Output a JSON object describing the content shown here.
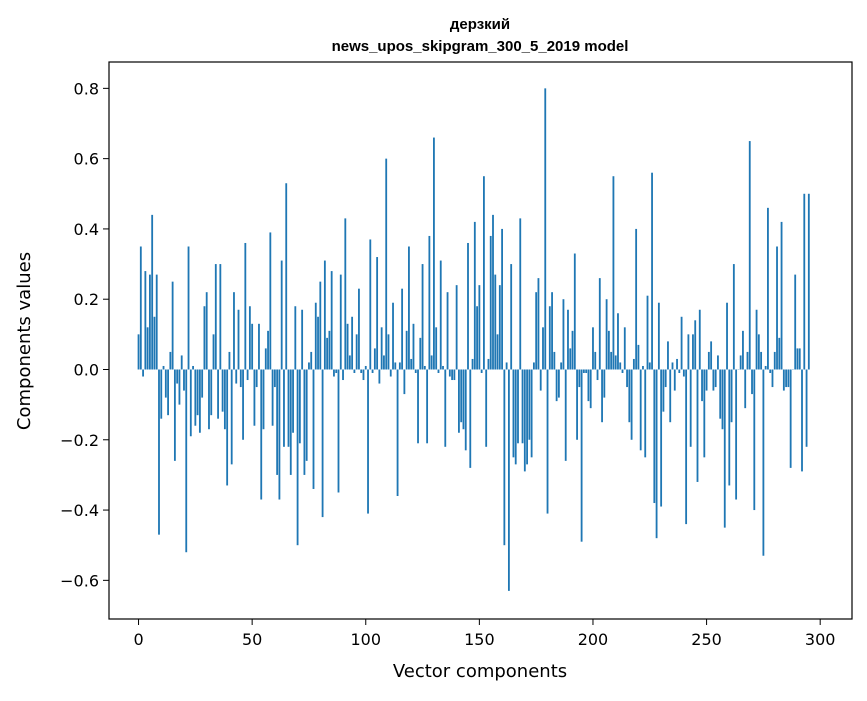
{
  "chart_data": {
    "type": "bar",
    "title_line1": "дерзкий",
    "title_line2": "news_upos_skipgram_300_5_2019 model",
    "xlabel": "Vector components",
    "ylabel": "Components values",
    "xlim": [
      -13,
      314
    ],
    "ylim": [
      -0.71,
      0.875
    ],
    "xticks": [
      0,
      50,
      100,
      150,
      200,
      250,
      300
    ],
    "xtick_labels": [
      "0",
      "50",
      "100",
      "150",
      "200",
      "250",
      "300"
    ],
    "yticks": [
      -0.6,
      -0.4,
      -0.2,
      0.0,
      0.2,
      0.4,
      0.6,
      0.8
    ],
    "ytick_labels": [
      "−0.6",
      "−0.4",
      "−0.2",
      "0.0",
      "0.2",
      "0.4",
      "0.6",
      "0.8"
    ],
    "grid": false,
    "bar_color": "#1f77b4",
    "values": [
      0.1,
      0.35,
      -0.02,
      0.28,
      0.12,
      0.27,
      0.44,
      0.15,
      0.27,
      -0.47,
      -0.14,
      0.01,
      -0.08,
      -0.13,
      0.05,
      0.25,
      -0.26,
      -0.04,
      -0.1,
      0.04,
      -0.06,
      -0.52,
      0.35,
      -0.19,
      0.01,
      -0.16,
      -0.13,
      -0.18,
      -0.08,
      0.18,
      0.22,
      -0.17,
      -0.13,
      0.1,
      0.3,
      -0.14,
      0.3,
      -0.12,
      -0.17,
      -0.33,
      0.05,
      -0.27,
      0.22,
      -0.04,
      0.17,
      -0.05,
      -0.2,
      0.36,
      -0.03,
      0.18,
      0.13,
      -0.16,
      -0.05,
      0.13,
      -0.37,
      -0.17,
      0.06,
      0.11,
      0.39,
      -0.16,
      -0.05,
      -0.3,
      -0.37,
      0.31,
      -0.22,
      0.53,
      -0.22,
      -0.3,
      -0.18,
      0.18,
      -0.5,
      -0.21,
      0.17,
      -0.3,
      -0.26,
      0.02,
      0.05,
      -0.34,
      0.19,
      0.15,
      0.25,
      -0.42,
      0.31,
      0.09,
      0.11,
      0.28,
      -0.02,
      -0.01,
      -0.35,
      0.27,
      -0.03,
      0.43,
      0.13,
      0.04,
      0.15,
      -0.01,
      0.1,
      0.23,
      -0.01,
      -0.03,
      0.01,
      -0.41,
      0.37,
      -0.01,
      0.06,
      0.32,
      -0.04,
      0.12,
      0.04,
      0.6,
      0.1,
      -0.02,
      0.19,
      0.02,
      -0.36,
      0.02,
      0.23,
      -0.07,
      0.11,
      0.35,
      0.03,
      0.13,
      -0.01,
      -0.21,
      0.09,
      0.3,
      0.01,
      -0.21,
      0.38,
      0.04,
      0.66,
      0.12,
      -0.01,
      0.31,
      0.01,
      -0.22,
      0.22,
      -0.02,
      -0.03,
      -0.03,
      0.24,
      -0.18,
      -0.15,
      -0.17,
      -0.23,
      0.36,
      -0.28,
      0.03,
      0.42,
      0.18,
      0.24,
      -0.01,
      0.55,
      -0.22,
      0.03,
      0.38,
      0.44,
      0.27,
      0.1,
      0.24,
      0.4,
      -0.5,
      0.02,
      -0.63,
      0.3,
      -0.25,
      -0.27,
      -0.21,
      0.43,
      -0.21,
      -0.29,
      -0.27,
      -0.2,
      -0.25,
      0.02,
      0.22,
      0.26,
      -0.06,
      0.12,
      0.8,
      -0.41,
      0.18,
      0.22,
      0.05,
      -0.09,
      -0.08,
      0.02,
      0.2,
      -0.26,
      0.17,
      0.06,
      0.11,
      0.33,
      -0.2,
      -0.05,
      -0.49,
      -0.01,
      -0.01,
      -0.09,
      -0.11,
      0.12,
      0.05,
      -0.03,
      0.26,
      -0.15,
      -0.08,
      0.2,
      0.11,
      0.05,
      0.55,
      0.04,
      0.16,
      0.02,
      -0.01,
      0.12,
      -0.05,
      -0.15,
      -0.2,
      0.03,
      0.4,
      0.07,
      -0.23,
      0.01,
      -0.25,
      0.21,
      0.02,
      0.56,
      -0.38,
      -0.48,
      0.19,
      -0.39,
      -0.12,
      -0.05,
      0.08,
      -0.15,
      0.02,
      -0.06,
      0.03,
      -0.01,
      0.15,
      -0.02,
      -0.44,
      0.1,
      -0.22,
      0.1,
      0.14,
      -0.32,
      0.17,
      -0.09,
      -0.25,
      -0.06,
      0.05,
      0.08,
      -0.06,
      -0.05,
      0.04,
      -0.14,
      -0.17,
      -0.45,
      0.19,
      -0.33,
      -0.15,
      0.3,
      -0.37,
      0.0,
      0.04,
      0.11,
      -0.11,
      0.05,
      0.65,
      -0.07,
      -0.4,
      0.17,
      0.1,
      0.05,
      -0.53,
      0.01,
      0.46,
      -0.01,
      -0.05,
      0.05,
      0.35,
      0.09,
      0.42,
      -0.06,
      -0.05,
      -0.05,
      -0.28,
      0.0,
      0.27,
      0.06,
      0.06,
      -0.29,
      0.5,
      -0.22,
      0.5
    ]
  }
}
